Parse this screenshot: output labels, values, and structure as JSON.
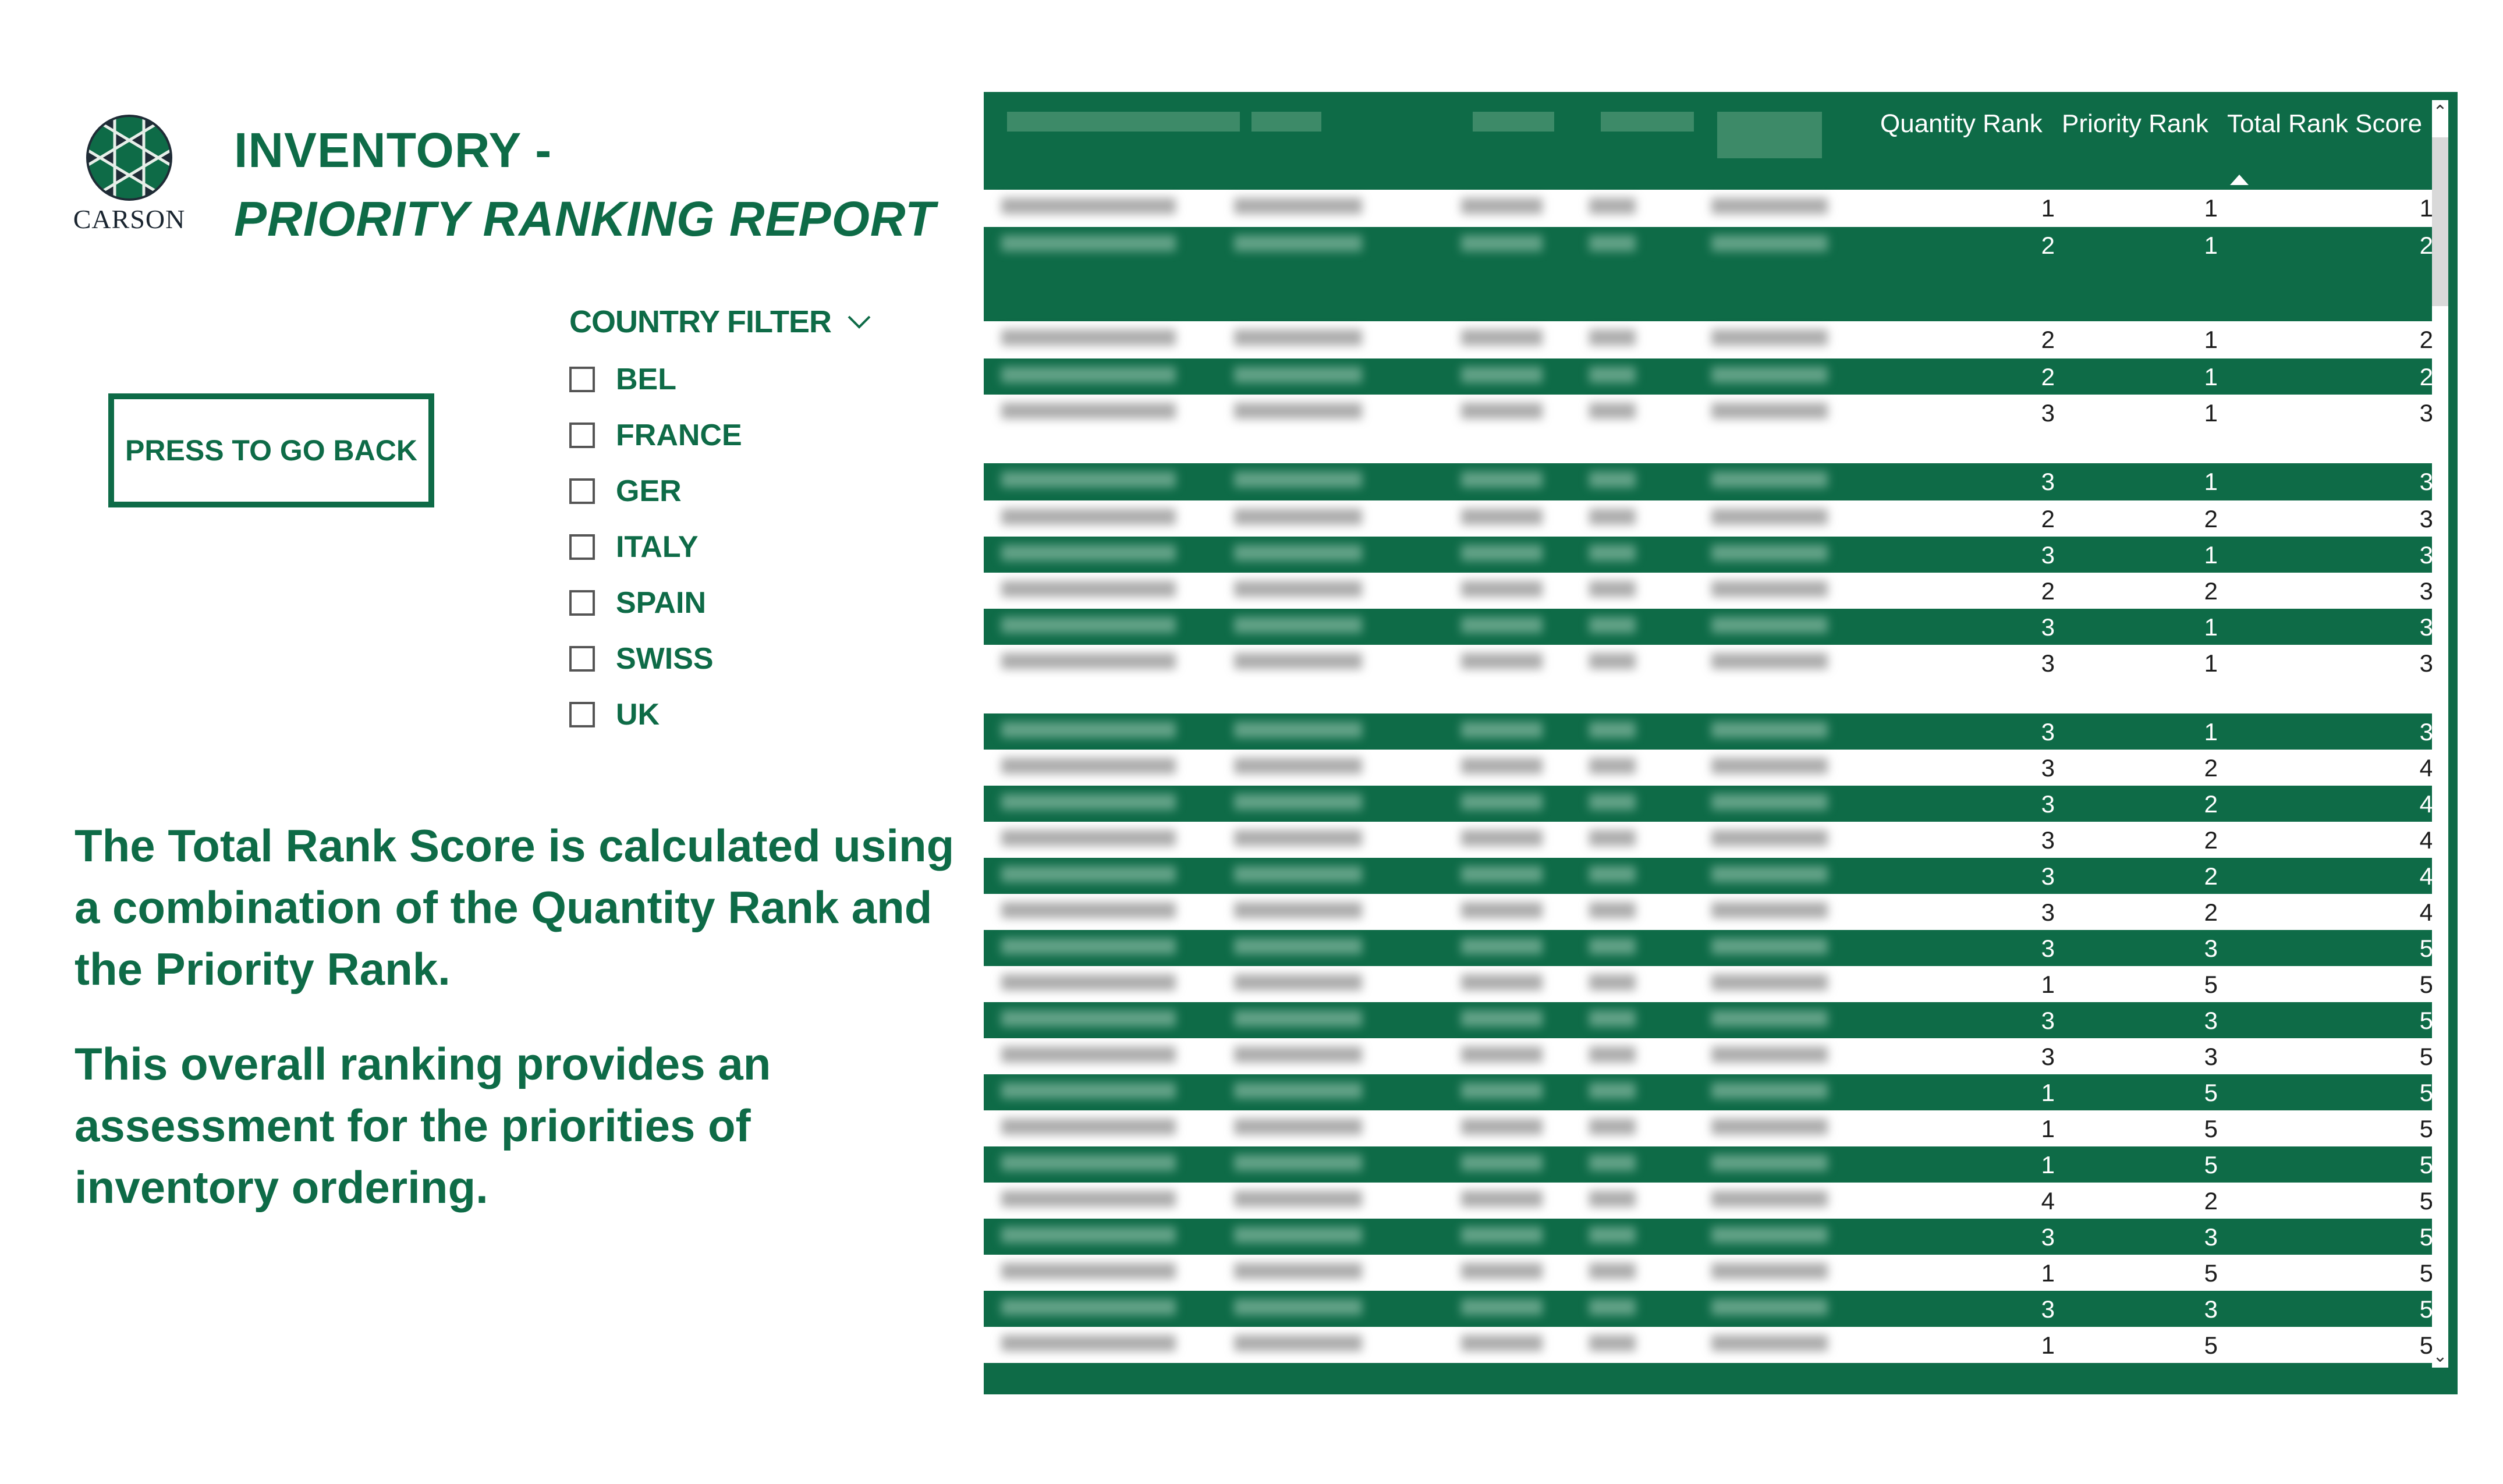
{
  "logo": {
    "text": "CARSON"
  },
  "title": {
    "line1": "INVENTORY -",
    "line2": "PRIORITY RANKING REPORT"
  },
  "back_button": {
    "label": "PRESS TO GO BACK"
  },
  "country_filter": {
    "title": "COUNTRY FILTER",
    "options": [
      "BEL",
      "FRANCE",
      "GER",
      "ITALY",
      "SPAIN",
      "SWISS",
      "UK"
    ]
  },
  "description": {
    "p1": "The Total Rank Score is calculated using a combination of the Quantity Rank and the Priority Rank.",
    "p2": "This overall ranking provides an assessment for the priorities of inventory ordering."
  },
  "table": {
    "headers": [
      "Quantity Rank",
      "Priority Rank",
      "Total Rank Score"
    ],
    "sorted_column": "Total Rank Score",
    "rows": [
      {
        "q": 1,
        "p": 1,
        "t": 1
      },
      {
        "q": 2,
        "p": 1,
        "t": 2
      },
      {
        "q": 2,
        "p": 1,
        "t": 2
      },
      {
        "q": 2,
        "p": 1,
        "t": 2
      },
      {
        "q": 3,
        "p": 1,
        "t": 3
      },
      {
        "q": 3,
        "p": 1,
        "t": 3
      },
      {
        "q": 2,
        "p": 2,
        "t": 3
      },
      {
        "q": 3,
        "p": 1,
        "t": 3
      },
      {
        "q": 2,
        "p": 2,
        "t": 3
      },
      {
        "q": 3,
        "p": 1,
        "t": 3
      },
      {
        "q": 3,
        "p": 1,
        "t": 3
      },
      {
        "q": 3,
        "p": 1,
        "t": 3
      },
      {
        "q": 3,
        "p": 2,
        "t": 4
      },
      {
        "q": 3,
        "p": 2,
        "t": 4
      },
      {
        "q": 3,
        "p": 2,
        "t": 4
      },
      {
        "q": 3,
        "p": 2,
        "t": 4
      },
      {
        "q": 3,
        "p": 2,
        "t": 4
      },
      {
        "q": 3,
        "p": 3,
        "t": 5
      },
      {
        "q": 1,
        "p": 5,
        "t": 5
      },
      {
        "q": 3,
        "p": 3,
        "t": 5
      },
      {
        "q": 3,
        "p": 3,
        "t": 5
      },
      {
        "q": 1,
        "p": 5,
        "t": 5
      },
      {
        "q": 1,
        "p": 5,
        "t": 5
      },
      {
        "q": 1,
        "p": 5,
        "t": 5
      },
      {
        "q": 4,
        "p": 2,
        "t": 5
      },
      {
        "q": 3,
        "p": 3,
        "t": 5
      },
      {
        "q": 1,
        "p": 5,
        "t": 5
      },
      {
        "q": 3,
        "p": 3,
        "t": 5
      },
      {
        "q": 1,
        "p": 5,
        "t": 5
      }
    ]
  },
  "colors": {
    "brand_green": "#0e6b47",
    "white": "#ffffff"
  },
  "icons": {
    "filter_toggle": "chevron-down-icon",
    "scroll_up": "arrow-up-icon",
    "scroll_down": "arrow-down-icon",
    "sort": "sort-ascending-icon"
  }
}
